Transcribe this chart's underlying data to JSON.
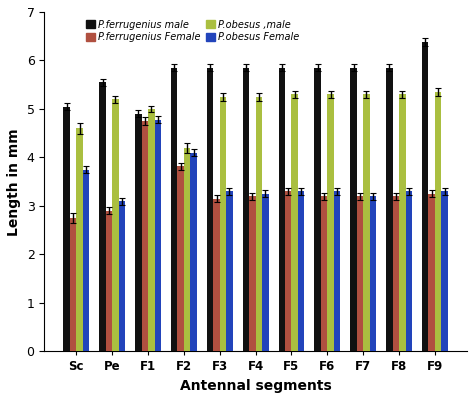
{
  "categories": [
    "Sc",
    "Pe",
    "F1",
    "F2",
    "F3",
    "F4",
    "F5",
    "F6",
    "F7",
    "F8",
    "F9"
  ],
  "series": {
    "P.ferrugenius male": {
      "values": [
        5.05,
        5.55,
        4.9,
        5.85,
        5.85,
        5.85,
        5.85,
        5.85,
        5.85,
        5.85,
        6.38
      ],
      "errors": [
        0.07,
        0.07,
        0.07,
        0.07,
        0.07,
        0.07,
        0.07,
        0.07,
        0.07,
        0.07,
        0.09
      ],
      "color": "#111111"
    },
    "P.ferrugenius Female": {
      "values": [
        2.75,
        2.9,
        4.75,
        3.82,
        3.15,
        3.2,
        3.3,
        3.2,
        3.2,
        3.2,
        3.25
      ],
      "errors": [
        0.1,
        0.07,
        0.08,
        0.07,
        0.07,
        0.07,
        0.07,
        0.07,
        0.07,
        0.07,
        0.07
      ],
      "color": "#b05040"
    },
    "P.obesus ,male": {
      "values": [
        4.6,
        5.2,
        5.0,
        4.2,
        5.25,
        5.25,
        5.3,
        5.3,
        5.3,
        5.3,
        5.35
      ],
      "errors": [
        0.12,
        0.07,
        0.07,
        0.1,
        0.08,
        0.08,
        0.08,
        0.08,
        0.08,
        0.08,
        0.08
      ],
      "color": "#aabf40"
    },
    "P.obesus Female": {
      "values": [
        3.75,
        3.1,
        4.78,
        4.1,
        3.3,
        3.25,
        3.3,
        3.3,
        3.2,
        3.3,
        3.3
      ],
      "errors": [
        0.07,
        0.07,
        0.07,
        0.07,
        0.07,
        0.07,
        0.07,
        0.07,
        0.07,
        0.07,
        0.07
      ],
      "color": "#2244bb"
    }
  },
  "series_order": [
    "P.ferrugenius male",
    "P.ferrugenius Female",
    "P.obesus ,male",
    "P.obesus Female"
  ],
  "ylabel": "Length in mm",
  "xlabel": "Antennal segments",
  "ylim": [
    0,
    7
  ],
  "yticks": [
    0,
    1,
    2,
    3,
    4,
    5,
    6,
    7
  ],
  "legend_labels": [
    "P.ferrugenius male",
    "P.ferrugenius Female",
    "P.obesus ,male",
    "P.obesus Female"
  ],
  "legend_colors": [
    "#111111",
    "#b05040",
    "#aabf40",
    "#2244bb"
  ],
  "background_color": "#ffffff",
  "bar_width": 0.18
}
